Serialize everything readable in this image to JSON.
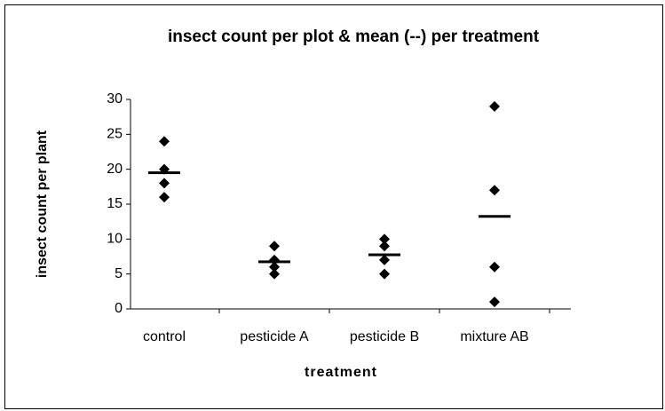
{
  "chart_data": {
    "type": "dot",
    "title": "insect count per plot & mean (--) per treatment",
    "x_label": "treatment",
    "y_label": "insect count per plant",
    "categories": [
      "control",
      "pesticide A",
      "pesticide B",
      "mixture AB"
    ],
    "values": [
      [
        24,
        20,
        18,
        16
      ],
      [
        9,
        7,
        6,
        5
      ],
      [
        10,
        9,
        7,
        5
      ],
      [
        29,
        17,
        6,
        1
      ]
    ],
    "means": [
      19.5,
      6.75,
      7.75,
      13.25
    ],
    "color": "#000000",
    "ylim": [
      0,
      30
    ],
    "yticks": [
      0,
      5,
      10,
      15,
      20,
      25,
      30
    ],
    "grid": false
  }
}
